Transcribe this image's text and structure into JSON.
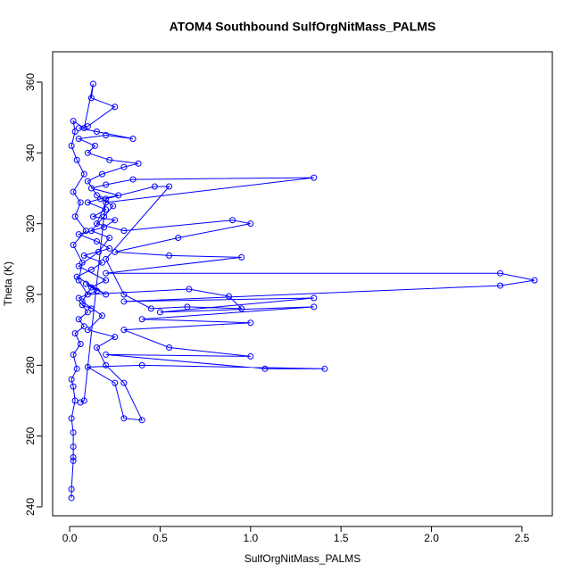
{
  "chart_data": {
    "type": "line",
    "title": "ATOM4 Southbound SulfOrgNitMass_PALMS",
    "x_label": "SulfOrgNitMass_PALMS",
    "y_label": "Theta (K)",
    "color": "#0000ff",
    "markers": true,
    "xlim": [
      -0.094,
      2.668
    ],
    "ylim": [
      237.48,
      368.57
    ],
    "xticks": [
      {
        "value": 0,
        "label": "0.0"
      },
      0.5,
      {
        "value": 1,
        "label": "1.0"
      },
      1.5,
      {
        "value": 2,
        "label": "2.0"
      },
      2.5
    ],
    "yticks": [
      240,
      260,
      280,
      300,
      320,
      340,
      360
    ],
    "x": [
      0.01,
      0.01,
      0.02,
      0.02,
      0.02,
      0.02,
      0.01,
      0.03,
      0.02,
      0.01,
      0.04,
      0.02,
      0.06,
      0.03,
      0.08,
      0.05,
      0.1,
      0.07,
      0.12,
      0.05,
      0.15,
      0.09,
      0.2,
      0.04,
      0.12,
      0.18,
      0.08,
      0.22,
      0.15,
      0.05,
      0.19,
      0.25,
      0.13,
      0.2,
      0.1,
      0.17,
      0.27,
      0.12,
      0.2,
      0.35,
      1.35,
      0.2,
      0.15,
      0.3,
      0.9,
      1.0,
      0.6,
      0.25,
      0.55,
      0.95,
      0.2,
      2.38,
      2.57,
      2.38,
      0.3,
      1.35,
      0.5,
      1.35,
      0.4,
      1.0,
      0.3,
      0.55,
      1.0,
      0.2,
      1.08,
      1.41,
      0.4,
      0.1,
      0.25,
      0.3,
      0.4,
      0.3,
      0.2,
      0.15,
      0.25,
      0.1,
      0.18,
      0.07,
      0.12,
      0.2,
      0.05,
      0.16,
      0.22,
      0.12,
      0.19,
      0.24,
      0.15,
      0.1,
      0.18,
      0.3,
      0.38,
      0.22,
      0.1,
      0.14,
      0.05,
      0.2,
      0.35,
      0.15,
      0.05,
      0.1,
      0.25,
      0.12,
      0.13,
      0.08,
      0.02,
      0.03,
      0.01,
      0.04,
      0.08,
      0.02,
      0.06,
      0.03,
      0.09,
      0.02,
      0.07,
      0.05,
      0.1,
      0.66,
      0.88,
      0.95,
      0.65,
      0.45,
      0.3,
      0.2,
      0.55,
      0.47,
      0.2,
      0.08,
      0.06
    ],
    "values": [
      242.5,
      245,
      253,
      254,
      257,
      261,
      265,
      270,
      274,
      276,
      279,
      283,
      286,
      289,
      291,
      293,
      295,
      297,
      296,
      299,
      301,
      303,
      300,
      305,
      307,
      309,
      311,
      313,
      315,
      317,
      319,
      321,
      322,
      324,
      326,
      327,
      328,
      330,
      331,
      332.5,
      333,
      326,
      320,
      318,
      321,
      320,
      316,
      312,
      311,
      310.5,
      306,
      306,
      304,
      302.5,
      298,
      299,
      295,
      296.5,
      293,
      292,
      290,
      285,
      282.5,
      283,
      279,
      279,
      280,
      279.5,
      275,
      265,
      264.5,
      275,
      280,
      285,
      288,
      290,
      294,
      298,
      302,
      304,
      308,
      312,
      316,
      318,
      322,
      325,
      328,
      332,
      334,
      336,
      337,
      338,
      340,
      342,
      344,
      345,
      344,
      346,
      347,
      347.5,
      353,
      355.5,
      359.5,
      347,
      349,
      346,
      342,
      338,
      334,
      329,
      326,
      322,
      318,
      314,
      309,
      304,
      300,
      301.5,
      299.5,
      296,
      296.5,
      296,
      300,
      310,
      330.5,
      330.5,
      327,
      270,
      269.5
    ]
  }
}
